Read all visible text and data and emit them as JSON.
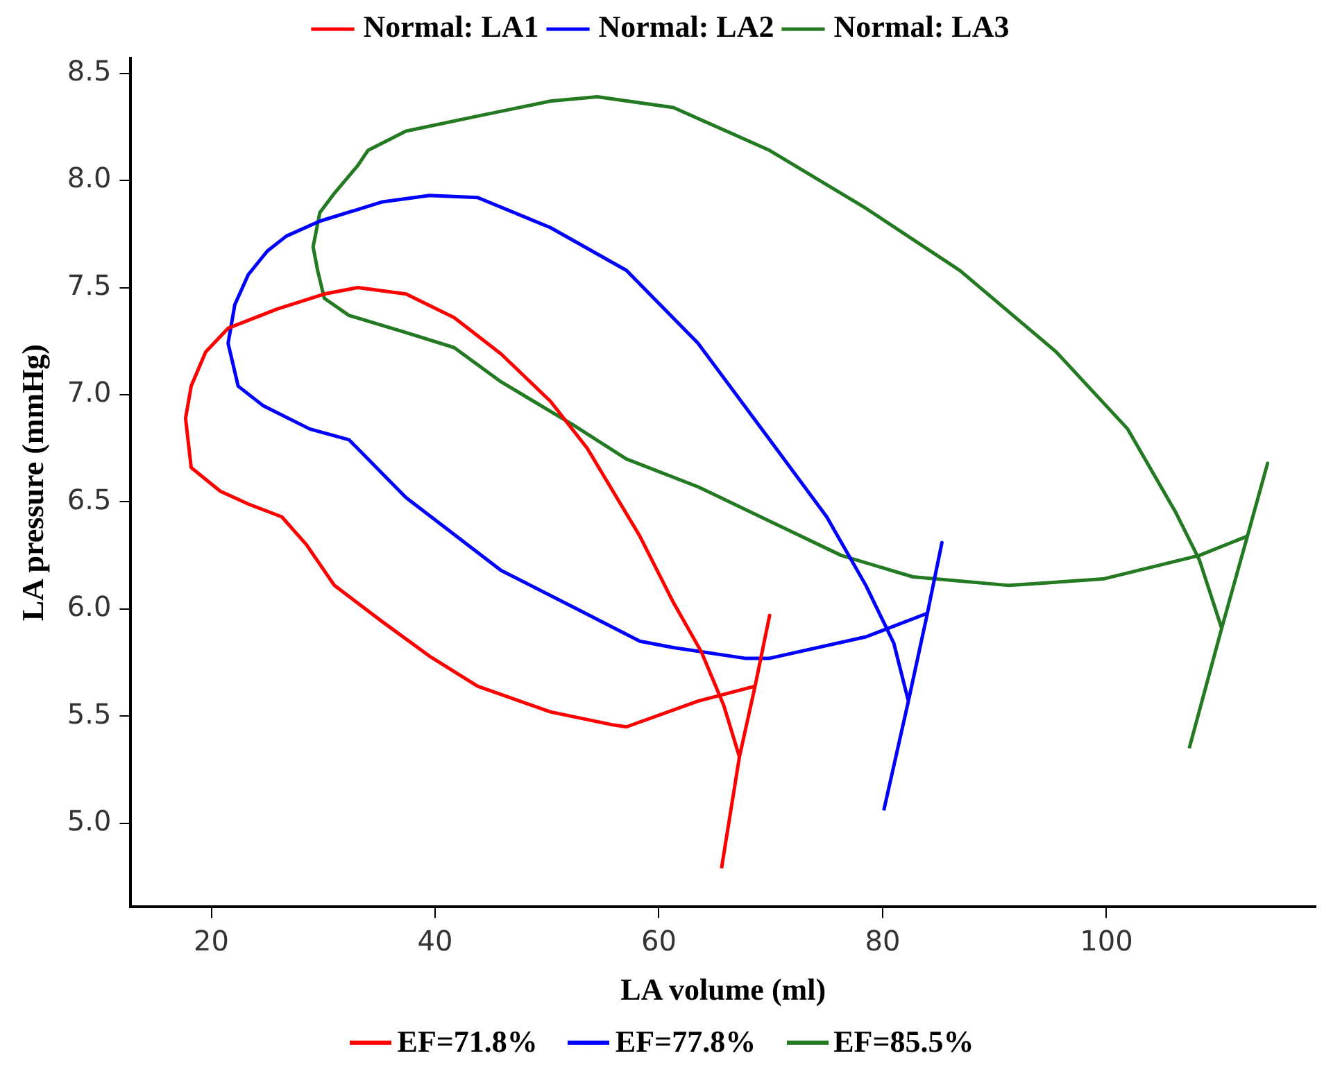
{
  "chart_data": {
    "type": "line",
    "xlabel": "LA volume (ml)",
    "ylabel": "LA pressure (mmHg)",
    "xlim": [
      12.8,
      118.7
    ],
    "ylim": [
      4.61,
      8.57
    ],
    "xticks": [
      20,
      40,
      60,
      80,
      100
    ],
    "yticks": [
      {
        "value": 5.0,
        "label": "5.0"
      },
      {
        "value": 5.5,
        "label": "5.5"
      },
      {
        "value": 6.0,
        "label": "6.0"
      },
      {
        "value": 6.5,
        "label": "6.5"
      },
      {
        "value": 7.0,
        "label": "7.0"
      },
      {
        "value": 7.5,
        "label": "7.5"
      },
      {
        "value": 8.0,
        "label": "8.0"
      },
      {
        "value": 8.5,
        "label": "8.5"
      }
    ],
    "grid": false,
    "legend": "top",
    "marker": "none",
    "line_style": "solid",
    "series": [
      {
        "name": "Normal: LA1",
        "color": "#ff0000",
        "x": [
          65.6,
          67.2,
          68.6,
          69.9,
          68.6,
          63.5,
          57.1,
          55.8,
          50.3,
          43.8,
          39.5,
          35.3,
          31.0,
          28.5,
          26.3,
          23.3,
          20.8,
          18.2,
          17.7,
          18.2,
          19.5,
          21.5,
          25.9,
          30.1,
          33.1,
          37.4,
          41.7,
          45.9,
          50.3,
          53.6,
          58.3,
          61.3,
          63.8,
          65.8,
          67.2
        ],
        "values": [
          4.79,
          5.31,
          5.64,
          5.97,
          5.64,
          5.57,
          5.45,
          5.46,
          5.52,
          5.64,
          5.78,
          5.94,
          6.11,
          6.3,
          6.43,
          6.49,
          6.55,
          6.66,
          6.89,
          7.04,
          7.2,
          7.31,
          7.4,
          7.47,
          7.5,
          7.47,
          7.36,
          7.19,
          6.97,
          6.75,
          6.34,
          6.03,
          5.8,
          5.55,
          5.31
        ]
      },
      {
        "name": "Normal: LA2",
        "color": "#0000ff",
        "x": [
          80.1,
          82.3,
          84.0,
          85.3,
          84.0,
          78.5,
          69.9,
          67.7,
          61.3,
          58.3,
          52.3,
          45.9,
          42.9,
          37.4,
          32.3,
          28.8,
          24.6,
          22.4,
          21.5,
          22.1,
          23.3,
          25.0,
          26.7,
          29.7,
          35.3,
          39.5,
          43.8,
          50.3,
          57.1,
          63.5,
          69.9,
          75.0,
          78.5,
          81.0,
          82.3
        ],
        "values": [
          5.06,
          5.57,
          5.98,
          6.31,
          5.98,
          5.87,
          5.77,
          5.77,
          5.82,
          5.85,
          6.01,
          6.18,
          6.3,
          6.52,
          6.79,
          6.84,
          6.95,
          7.04,
          7.24,
          7.42,
          7.56,
          7.67,
          7.74,
          7.81,
          7.9,
          7.93,
          7.92,
          7.78,
          7.58,
          7.24,
          6.79,
          6.43,
          6.11,
          5.84,
          5.57
        ]
      },
      {
        "name": "Normal: LA3",
        "color": "#237a23",
        "x": [
          107.4,
          110.3,
          112.6,
          114.4,
          112.6,
          108.3,
          99.7,
          91.3,
          82.7,
          76.3,
          69.9,
          63.5,
          57.1,
          52.3,
          45.9,
          41.7,
          37.4,
          32.3,
          30.1,
          29.5,
          29.1,
          29.7,
          31.0,
          33.1,
          34.0,
          37.4,
          43.8,
          50.3,
          54.5,
          61.3,
          69.9,
          78.5,
          86.9,
          95.5,
          101.9,
          106.2,
          108.3,
          110.3
        ],
        "values": [
          5.35,
          5.91,
          6.34,
          6.68,
          6.34,
          6.25,
          6.14,
          6.11,
          6.15,
          6.25,
          6.41,
          6.57,
          6.7,
          6.86,
          7.06,
          7.22,
          7.29,
          7.37,
          7.45,
          7.58,
          7.69,
          7.85,
          7.94,
          8.07,
          8.14,
          8.23,
          8.3,
          8.37,
          8.39,
          8.34,
          8.14,
          7.87,
          7.58,
          7.2,
          6.84,
          6.45,
          6.23,
          5.91
        ]
      }
    ],
    "annotations": [
      "EF=71.8%",
      "EF=77.8%",
      "EF=85.5%"
    ]
  }
}
